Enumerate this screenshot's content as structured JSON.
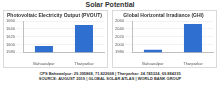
{
  "header": {
    "title": "Solar Potential"
  },
  "chart_data": [
    {
      "type": "bar",
      "title": "Photovoltaic Electricity Output (PVOUT)",
      "categories": [
        "Bahawalpur",
        "Tharparkar"
      ],
      "values": [
        1596,
        1650
      ],
      "color": "#2f6fd0",
      "ylim": [
        1580,
        1660
      ],
      "yticks": [
        1580,
        1600,
        1620,
        1640,
        1660
      ],
      "grid": true
    },
    {
      "type": "bar",
      "title": "Global Horizontal Irradiance (GHI)",
      "categories": [
        "Bahawalpur",
        "Tharparkar"
      ],
      "values": [
        1986,
        2052
      ],
      "color": "#2f6fd0",
      "ylim": [
        1980,
        2060
      ],
      "yticks": [
        1980,
        2000,
        2020,
        2040,
        2060
      ],
      "grid": true
    }
  ],
  "footer": [
    "CPS Bahawalpur: 29.395868, 71.822668 | Tharparkar: 24.745324, 69.884235",
    "SOURCE: AUGUST 2019 | GLOBAL SOLAR ATLAS | WORLD BANK GROUP"
  ]
}
